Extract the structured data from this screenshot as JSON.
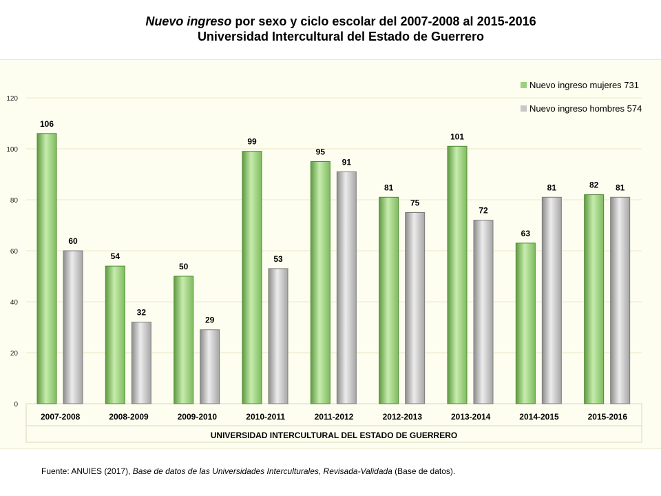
{
  "title": {
    "italic_part": "Nuevo ingreso",
    "rest_line1": " por sexo y ciclo escolar del  2007-2008 al 2015-2016",
    "line2": "Universidad Intercultural del Estado de Guerrero"
  },
  "source": {
    "prefix": "Fuente: ANUIES (2017),   ",
    "italic": "Base de datos de las Universidades  Interculturales, Revisada-Validada",
    "suffix": "  (Base de datos)."
  },
  "colors": {
    "mujeres": "#9bd27f",
    "hombres": "#c8c8c8",
    "grid": "#ece9c6",
    "background": "#fdfdf0"
  },
  "chart_data": {
    "type": "bar",
    "title": "Nuevo ingreso por sexo y ciclo escolar del  2007-2008 al 2015-2016 Universidad Intercultural del Estado de Guerrero",
    "categories": [
      "2007-2008",
      "2008-2009",
      "2009-2010",
      "2010-2011",
      "2011-2012",
      "2012-2013",
      "2013-2014",
      "2014-2015",
      "2015-2016"
    ],
    "series": [
      {
        "name": "Nuevo ingreso mujeres 731",
        "values": [
          106,
          54,
          50,
          99,
          95,
          81,
          101,
          63,
          82
        ]
      },
      {
        "name": "Nuevo ingreso hombres 574",
        "values": [
          60,
          32,
          29,
          53,
          91,
          75,
          72,
          81,
          81
        ]
      }
    ],
    "xlabel": "UNIVERSIDAD INTERCULTURAL DEL ESTADO DE GUERRERO",
    "ylabel": "",
    "ylim": [
      0,
      120
    ],
    "yticks": [
      0,
      20,
      40,
      60,
      80,
      100,
      120
    ],
    "grid": true,
    "legend_position": "top-right"
  }
}
